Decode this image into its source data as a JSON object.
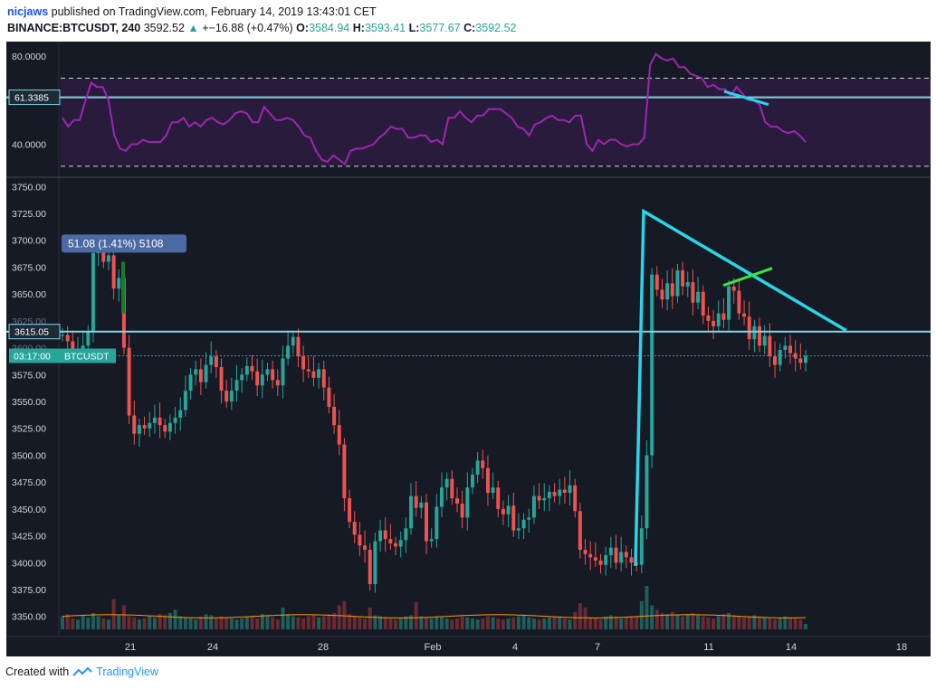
{
  "header": {
    "user": "nicjaws",
    "published": "published on TradingView.com, February 14, 2019 13:43:01 CET",
    "symbol": "BINANCE:BTCUSDT, 240",
    "last": "3592.52",
    "change_arrow": "▲",
    "change": "+−16.88 (+0.47%)",
    "o_label": "O:",
    "o": "3584.94",
    "h_label": "H:",
    "h": "3593.41",
    "l_label": "L:",
    "l": "3577.67",
    "c_label": "C:",
    "c": "3592.52"
  },
  "footer": {
    "created_with": "Created with",
    "brand": "TradingView"
  },
  "colors": {
    "background": "#161a25",
    "up": "#26a69a",
    "down": "#ef5350",
    "rsi_line": "#9c27b0",
    "trendline": "#29d6e8",
    "green_line": "#39e639",
    "hline": "#7fd7e3"
  },
  "labels": {
    "rsi_level": "61.3385",
    "price_level": "3615.05",
    "countdown": "03:17:00",
    "ticker": "BTCUSDT",
    "measure": "51.08 (1.41%) 5108"
  },
  "chart_data": [
    {
      "type": "line",
      "panel": "RSI",
      "yticks": [
        "80.0000",
        "40.0000"
      ],
      "ylim": [
        25,
        85
      ],
      "band": [
        70,
        30
      ],
      "level": 61.3385,
      "values": [
        52,
        48,
        51,
        51,
        60,
        68,
        66,
        66,
        60,
        44,
        38,
        37,
        40,
        40,
        42,
        41,
        41,
        41,
        44,
        50,
        50,
        52,
        48,
        50,
        48,
        51,
        52,
        50,
        49,
        51,
        54,
        55,
        54,
        50,
        50,
        57,
        54,
        51,
        51,
        52,
        51,
        48,
        44,
        43,
        37,
        33,
        32,
        35,
        33,
        31,
        37,
        38,
        38,
        39,
        40,
        43,
        45,
        48,
        47,
        47,
        43,
        43,
        44,
        44,
        41,
        42,
        40,
        52,
        52,
        55,
        52,
        50,
        53,
        53,
        56,
        56,
        56,
        54,
        52,
        48,
        47,
        44,
        49,
        50,
        52,
        53,
        51,
        51,
        50,
        53,
        53,
        40,
        37,
        42,
        40,
        42,
        42,
        40,
        39,
        40,
        40,
        43,
        76,
        81,
        79,
        78,
        79,
        75,
        75,
        72,
        71,
        70,
        66,
        67,
        65,
        65,
        62,
        66,
        63,
        60,
        60,
        58,
        50,
        48,
        48,
        46,
        45,
        46,
        44,
        41
      ],
      "x_range": [
        16.8,
        14.55
      ]
    },
    {
      "type": "candlestick",
      "panel": "price",
      "yticks": [
        "3750.00",
        "3725.00",
        "3700.00",
        "3675.00",
        "3650.00",
        "3625.00",
        "3600.00",
        "3575.00",
        "3550.00",
        "3525.00",
        "3500.00",
        "3475.00",
        "3450.00",
        "3425.00",
        "3400.00",
        "3375.00",
        "3350.00"
      ],
      "ylim": [
        3338,
        3757
      ],
      "xticks": [
        "21",
        "24",
        "28",
        "Feb",
        "4",
        "7",
        "11",
        "14",
        "18"
      ],
      "closes": [
        3612,
        3606,
        3598,
        3598,
        3602,
        3615,
        3688,
        3692,
        3680,
        3686,
        3655,
        3665,
        3600,
        3537,
        3520,
        3528,
        3525,
        3530,
        3535,
        3528,
        3522,
        3530,
        3535,
        3542,
        3560,
        3575,
        3580,
        3568,
        3584,
        3592,
        3582,
        3560,
        3550,
        3560,
        3570,
        3575,
        3583,
        3578,
        3565,
        3575,
        3580,
        3570,
        3565,
        3590,
        3602,
        3610,
        3592,
        3580,
        3578,
        3572,
        3580,
        3563,
        3545,
        3528,
        3510,
        3460,
        3438,
        3426,
        3416,
        3412,
        3380,
        3420,
        3430,
        3422,
        3418,
        3415,
        3421,
        3432,
        3462,
        3451,
        3456,
        3420,
        3422,
        3452,
        3470,
        3478,
        3460,
        3455,
        3442,
        3470,
        3482,
        3495,
        3488,
        3465,
        3470,
        3450,
        3445,
        3453,
        3430,
        3432,
        3440,
        3442,
        3462,
        3458,
        3460,
        3466,
        3462,
        3468,
        3465,
        3472,
        3448,
        3412,
        3408,
        3405,
        3402,
        3398,
        3407,
        3414,
        3400,
        3410,
        3405,
        3400,
        3398,
        3432,
        3500,
        3668,
        3654,
        3645,
        3660,
        3648,
        3672,
        3657,
        3661,
        3642,
        3652,
        3630,
        3625,
        3620,
        3632,
        3626,
        3657,
        3653,
        3632,
        3629,
        3608,
        3620,
        3602,
        3611,
        3592,
        3584,
        3598,
        3602,
        3595,
        3590,
        3586,
        3592
      ],
      "high": 3725,
      "low": 3375
    },
    {
      "type": "bar",
      "panel": "volume",
      "values": [
        12,
        14,
        10,
        9,
        13,
        11,
        15,
        12,
        10,
        9,
        28,
        13,
        22,
        12,
        11,
        9,
        10,
        12,
        11,
        14,
        13,
        15,
        18,
        12,
        11,
        10,
        9,
        12,
        14,
        13,
        10,
        12,
        11,
        10,
        9,
        10,
        11,
        12,
        10,
        14,
        13,
        11,
        9,
        20,
        14,
        12,
        11,
        10,
        12,
        13,
        11,
        12,
        14,
        15,
        22,
        26,
        14,
        12,
        11,
        10,
        20,
        13,
        12,
        11,
        10,
        9,
        10,
        12,
        13,
        25,
        12,
        11,
        10,
        12,
        11,
        10,
        9,
        10,
        12,
        11,
        10,
        9,
        10,
        12,
        11,
        10,
        9,
        10,
        11,
        12,
        13,
        11,
        10,
        9,
        10,
        11,
        12,
        11,
        10,
        9,
        16,
        24,
        20,
        11,
        10,
        9,
        12,
        13,
        12,
        10,
        11,
        12,
        12,
        26,
        40,
        22,
        18,
        15,
        14,
        16,
        13,
        12,
        14,
        15,
        13,
        12,
        11,
        10,
        12,
        14,
        15,
        13,
        12,
        11,
        12,
        13,
        12,
        11,
        10,
        9,
        10,
        12,
        11,
        10,
        9,
        5
      ]
    }
  ]
}
